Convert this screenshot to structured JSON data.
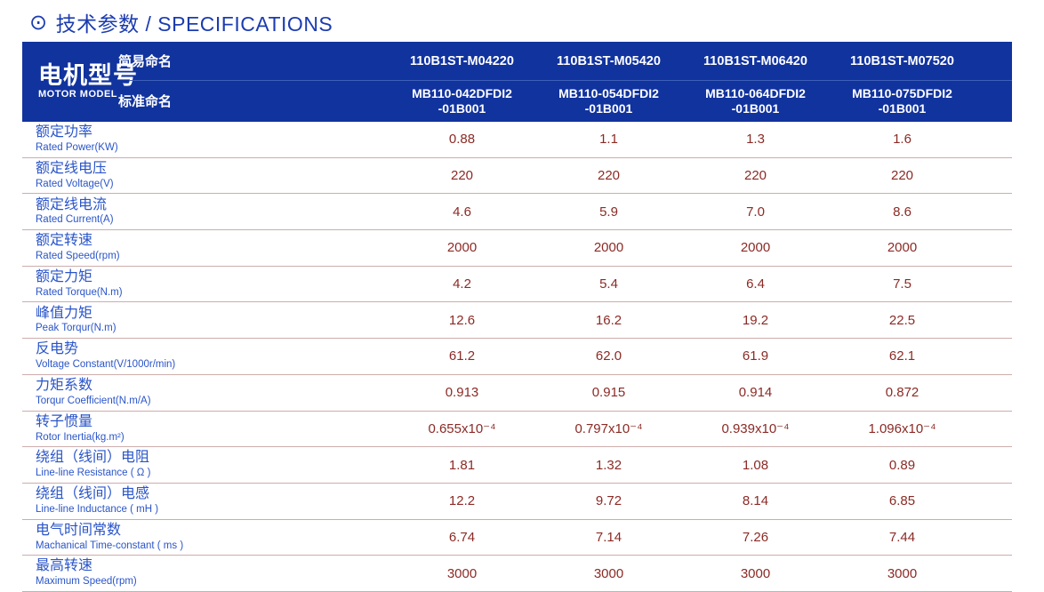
{
  "title": {
    "icon_glyph": "⊙",
    "text": "技术参数 / SPECIFICATIONS"
  },
  "colors": {
    "header_bg": "#11339e",
    "title_blue": "#1b3cb0",
    "label_blue": "#2a55c9",
    "value_maroon": "#8b2a25",
    "row_separator": "#ccadab"
  },
  "table": {
    "header": {
      "row_label_cn": "电机型号",
      "row_label_en": "MOTOR MODEL",
      "simple_name_label": "简易命名",
      "standard_name_label": "标准命名",
      "models": [
        {
          "simple": "110B1ST-M04220",
          "standard": "MB110-042DFDI2\n-01B001"
        },
        {
          "simple": "110B1ST-M05420",
          "standard": "MB110-054DFDI2\n-01B001"
        },
        {
          "simple": "110B1ST-M06420",
          "standard": "MB110-064DFDI2\n-01B001"
        },
        {
          "simple": "110B1ST-M07520",
          "standard": "MB110-075DFDI2\n-01B001"
        }
      ]
    },
    "rows": [
      {
        "name_cn": "额定功率",
        "name_en": "Rated Power(KW)",
        "values": [
          "0.88",
          "1.1",
          "1.3",
          "1.6"
        ]
      },
      {
        "name_cn": "额定线电压",
        "name_en": "Rated Voltage(V)",
        "values": [
          "220",
          "220",
          "220",
          "220"
        ]
      },
      {
        "name_cn": "额定线电流",
        "name_en": "Rated Current(A)",
        "values": [
          "4.6",
          "5.9",
          "7.0",
          "8.6"
        ]
      },
      {
        "name_cn": "额定转速",
        "name_en": "Rated Speed(rpm)",
        "values": [
          "2000",
          "2000",
          "2000",
          "2000"
        ]
      },
      {
        "name_cn": "额定力矩",
        "name_en": "Rated Torque(N.m)",
        "values": [
          "4.2",
          "5.4",
          "6.4",
          "7.5"
        ]
      },
      {
        "name_cn": "峰值力矩",
        "name_en": "Peak Torqur(N.m)",
        "values": [
          "12.6",
          "16.2",
          "19.2",
          "22.5"
        ]
      },
      {
        "name_cn": "反电势",
        "name_en": "Voltage Constant(V/1000r/min)",
        "values": [
          "61.2",
          "62.0",
          "61.9",
          "62.1"
        ]
      },
      {
        "name_cn": "力矩系数",
        "name_en": "Torqur Coefficient(N.m/A)",
        "values": [
          "0.913",
          "0.915",
          "0.914",
          "0.872"
        ]
      },
      {
        "name_cn": "转子惯量",
        "name_en": "Rotor Inertia(kg.m²)",
        "values": [
          "0.655x10⁻⁴",
          "0.797x10⁻⁴",
          "0.939x10⁻⁴",
          "1.096x10⁻⁴"
        ]
      },
      {
        "name_cn": "绕组（线间）电阻",
        "name_en": "Line-line Resistance ( Ω )",
        "values": [
          "1.81",
          "1.32",
          "1.08",
          "0.89"
        ]
      },
      {
        "name_cn": "绕组（线间）电感",
        "name_en": "Line-line Inductance ( mH )",
        "values": [
          "12.2",
          "9.72",
          "8.14",
          "6.85"
        ]
      },
      {
        "name_cn": "电气时间常数",
        "name_en": "Machanical Time-constant ( ms )",
        "values": [
          "6.74",
          "7.14",
          "7.26",
          "7.44"
        ]
      },
      {
        "name_cn": "最高转速",
        "name_en": "Maximum Speed(rpm)",
        "values": [
          "3000",
          "3000",
          "3000",
          "3000"
        ]
      }
    ]
  }
}
